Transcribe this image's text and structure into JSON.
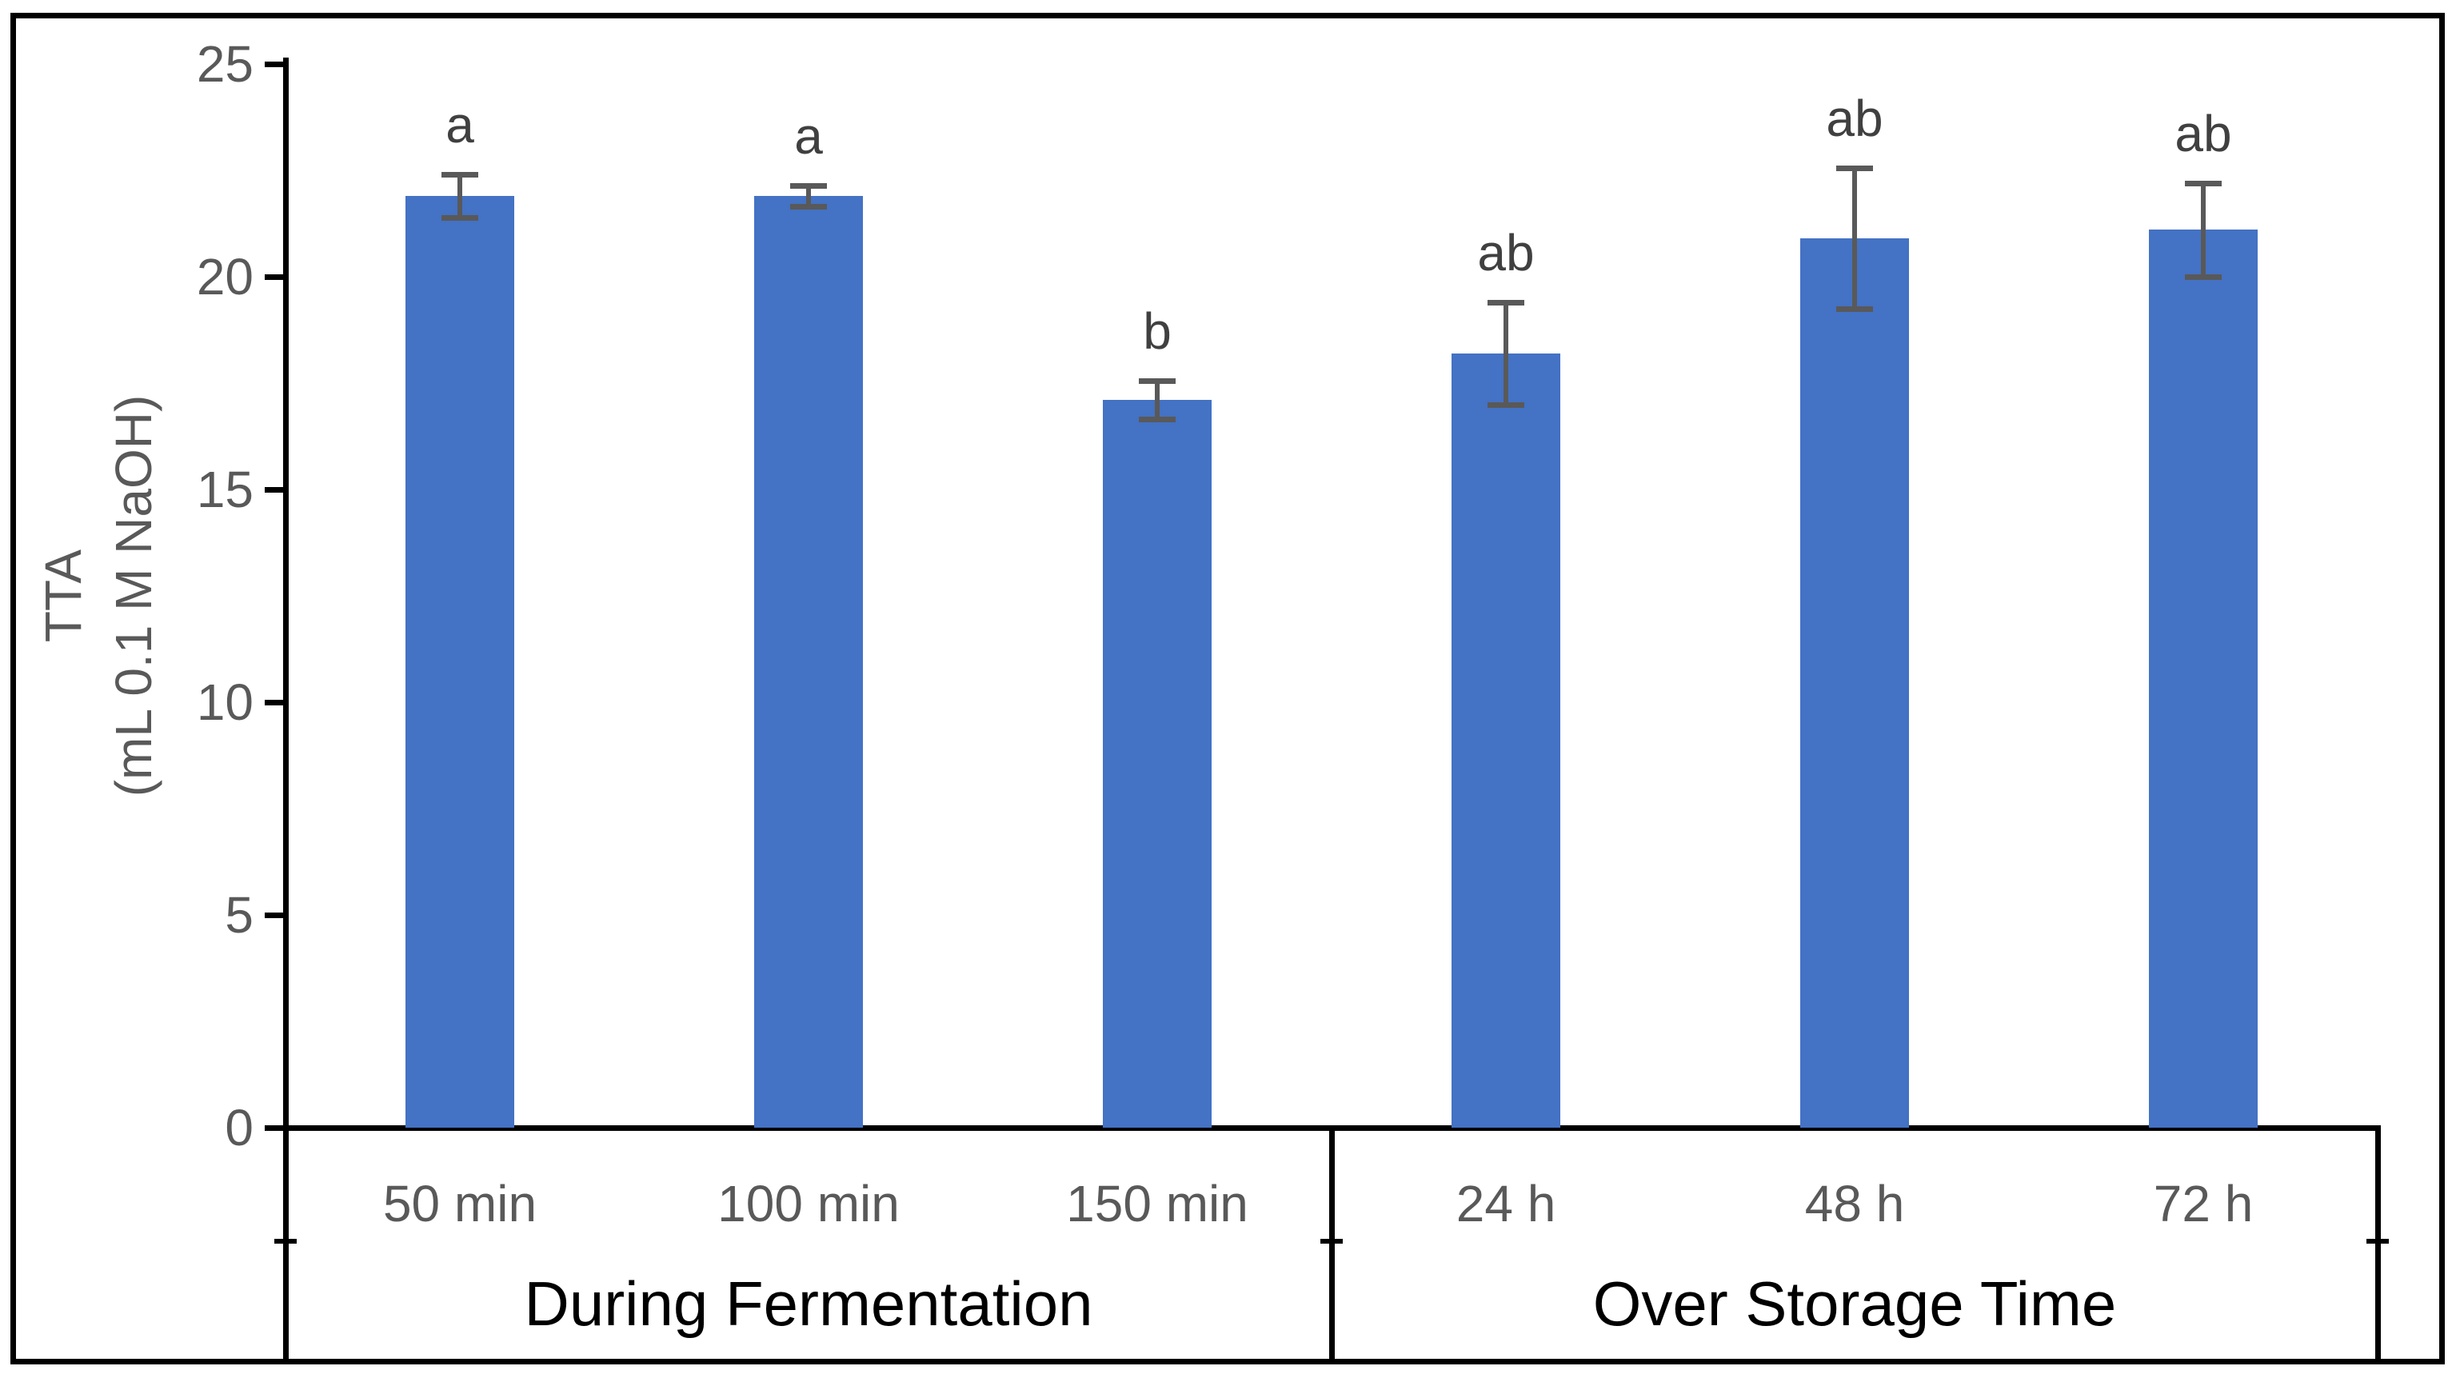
{
  "chart_data": {
    "type": "bar",
    "title": "",
    "ylabel_lines": [
      "TTA",
      "(mL 0.1 M NaOH)"
    ],
    "yticks": [
      0,
      5,
      10,
      15,
      20,
      25
    ],
    "ylim": [
      0,
      25
    ],
    "grid": false,
    "legend_position": "none",
    "bar_color": "#4472C4",
    "error_bar_color": "#595959",
    "axis_color": "#000000",
    "tick_label_color": "#595959",
    "sig_letter_color": "#404040",
    "categories": [
      "50 min",
      "100 min",
      "150 min",
      "24 h",
      "48 h",
      "72 h"
    ],
    "values": [
      21.9,
      21.9,
      17.1,
      18.2,
      20.9,
      21.1
    ],
    "errors": [
      0.5,
      0.25,
      0.45,
      1.2,
      1.65,
      1.1
    ],
    "sig_letters": [
      "a",
      "a",
      "b",
      "ab",
      "ab",
      "ab"
    ],
    "groups": [
      {
        "label": "During Fermentation",
        "categories": [
          "50 min",
          "100 min",
          "150 min"
        ]
      },
      {
        "label": "Over Storage Time",
        "categories": [
          "24 h",
          "48 h",
          "72 h"
        ]
      }
    ]
  }
}
